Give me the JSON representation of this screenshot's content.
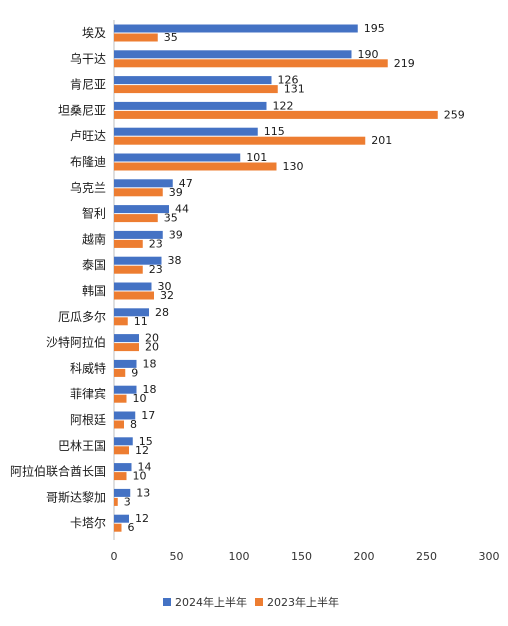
{
  "chart_data": {
    "type": "bar",
    "orientation": "horizontal",
    "categories": [
      "埃及",
      "乌干达",
      "肯尼亚",
      "坦桑尼亚",
      "卢旺达",
      "布隆迪",
      "乌克兰",
      "智利",
      "越南",
      "泰国",
      "韩国",
      "厄瓜多尔",
      "沙特阿拉伯",
      "科威特",
      "菲律宾",
      "阿根廷",
      "巴林王国",
      "阿拉伯联合酋长国",
      "哥斯达黎加",
      "卡塔尔"
    ],
    "series": [
      {
        "name": "2024年上半年",
        "color": "#4472C4",
        "values": [
          195,
          190,
          126,
          122,
          115,
          101,
          47,
          44,
          39,
          38,
          30,
          28,
          20,
          18,
          18,
          17,
          15,
          14,
          13,
          12
        ]
      },
      {
        "name": "2023年上半年",
        "color": "#ED7D31",
        "values": [
          35,
          219,
          131,
          259,
          201,
          130,
          39,
          35,
          23,
          23,
          32,
          11,
          20,
          9,
          10,
          8,
          12,
          10,
          3,
          6
        ]
      }
    ],
    "xlim": [
      0,
      300
    ],
    "xticks": [
      0,
      50,
      100,
      150,
      200,
      250,
      300
    ],
    "grid": false,
    "legend_position": "bottom"
  }
}
